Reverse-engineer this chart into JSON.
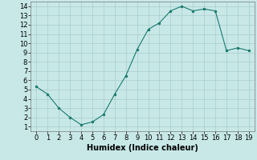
{
  "x": [
    0,
    1,
    2,
    3,
    4,
    5,
    6,
    7,
    8,
    9,
    10,
    11,
    12,
    13,
    14,
    15,
    16,
    17,
    18,
    19
  ],
  "y": [
    5.3,
    4.5,
    3.0,
    2.0,
    1.2,
    1.5,
    2.3,
    4.5,
    6.5,
    9.3,
    11.5,
    12.2,
    13.5,
    14.0,
    13.5,
    13.7,
    13.5,
    9.2,
    9.5,
    9.2
  ],
  "line_color": "#1a7a6e",
  "marker_color": "#1a7a6e",
  "bg_color": "#c8e8e8",
  "grid_color": "#aacccc",
  "xlabel": "Humidex (Indice chaleur)",
  "xlim": [
    -0.5,
    19.5
  ],
  "ylim": [
    0.5,
    14.5
  ],
  "xticks": [
    0,
    1,
    2,
    3,
    4,
    5,
    6,
    7,
    8,
    9,
    10,
    11,
    12,
    13,
    14,
    15,
    16,
    17,
    18,
    19
  ],
  "yticks": [
    1,
    2,
    3,
    4,
    5,
    6,
    7,
    8,
    9,
    10,
    11,
    12,
    13,
    14
  ],
  "label_fontsize": 7,
  "tick_fontsize": 6
}
